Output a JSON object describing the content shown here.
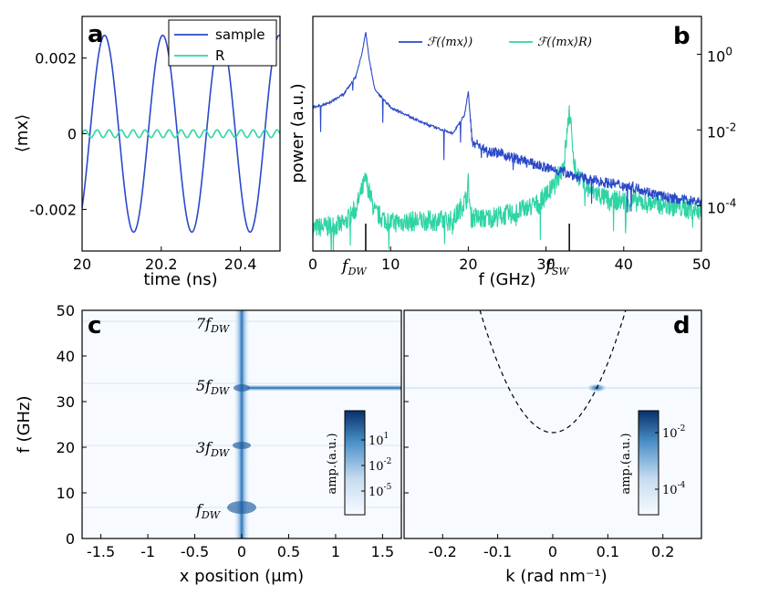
{
  "chart_data": [
    {
      "panel": "a",
      "type": "line",
      "xlabel": "time (ns)",
      "ylabel": "⟨mx⟩",
      "xlim": [
        20,
        20.5
      ],
      "ylim": [
        -0.0031,
        0.0031
      ],
      "xticks": [
        "20",
        "20.2",
        "20.4"
      ],
      "xtick_values": [
        20,
        20.2,
        20.4
      ],
      "yticks": [
        "0.002",
        "0",
        "-0.002"
      ],
      "ytick_values": [
        0.002,
        0,
        -0.002
      ],
      "legend": {
        "placement": "top-right",
        "entries": [
          "sample",
          "R"
        ]
      },
      "series": [
        {
          "name": "sample",
          "color": "#2a49c8",
          "amplitude": 0.0026,
          "frequency_GHz": 6.8,
          "phase": 0.0
        },
        {
          "name": "R",
          "color": "#2fd4a4",
          "amplitude": 0.0001,
          "frequency_GHz": 33,
          "phase": 0.0
        }
      ]
    },
    {
      "panel": "b",
      "type": "line",
      "xlabel": "f (GHz)",
      "ylabel": "power (a.u.)",
      "xlim": [
        0,
        50
      ],
      "yscale": "log",
      "ylim_log10": [
        -5.2,
        1.0
      ],
      "xticks": [
        "0",
        "10",
        "20",
        "30",
        "40",
        "50"
      ],
      "xtick_values": [
        0,
        10,
        20,
        30,
        40,
        50
      ],
      "yticks": [
        "10^0",
        "10^-2",
        "10^-4"
      ],
      "ytick_values_log10": [
        0,
        -2,
        -4
      ],
      "annotations": [
        {
          "label": "f",
          "sub": "DW",
          "x": 6.8
        },
        {
          "label": "f",
          "sub": "SW",
          "x": 33
        }
      ],
      "legend": {
        "placement": "top-center",
        "entries": [
          "ℱ(⟨mx⟩)",
          "ℱ(⟨mx⟩R)"
        ]
      },
      "series": [
        {
          "name": "ℱ(⟨mx⟩)",
          "color": "#2a49c8",
          "x": [
            0,
            2,
            4,
            5.5,
            6.3,
            6.8,
            7.3,
            8,
            10,
            14,
            18,
            19.5,
            20,
            20.5,
            22,
            26,
            30,
            32,
            33,
            34,
            38,
            42,
            44,
            46,
            48,
            50
          ],
          "log10_power": [
            -1.4,
            -1.3,
            -1.05,
            -0.6,
            0.0,
            0.6,
            -0.2,
            -0.95,
            -1.4,
            -1.8,
            -2.1,
            -1.6,
            -1.0,
            -2.3,
            -2.5,
            -2.75,
            -3.0,
            -3.1,
            -3.15,
            -3.25,
            -3.4,
            -3.55,
            -3.7,
            -3.8,
            -3.85,
            -3.9
          ]
        },
        {
          "name": "ℱ(⟨mx⟩R)",
          "color": "#2fd4a4",
          "x": [
            0,
            2,
            4,
            5.5,
            6.8,
            8,
            10,
            14,
            18,
            19.8,
            20,
            20.3,
            22,
            26,
            29,
            31,
            32.3,
            33,
            33.7,
            35,
            38,
            42,
            46,
            50
          ],
          "log10_power": [
            -4.6,
            -4.55,
            -4.5,
            -4.1,
            -3.3,
            -4.2,
            -4.45,
            -4.4,
            -4.4,
            -3.8,
            -3.4,
            -4.3,
            -4.35,
            -4.2,
            -3.95,
            -3.5,
            -2.9,
            -1.5,
            -3.0,
            -3.5,
            -3.85,
            -3.9,
            -4.0,
            -4.15
          ]
        }
      ]
    },
    {
      "panel": "c",
      "type": "heatmap",
      "xlabel": "x position (μm)",
      "ylabel": "f (GHz)",
      "xlim": [
        -1.7,
        1.7
      ],
      "ylim": [
        0,
        50
      ],
      "xticks": [
        "-1.5",
        "-1",
        "-0.5",
        "0",
        "0.5",
        "1",
        "1.5"
      ],
      "xtick_values": [
        -1.5,
        -1,
        -0.5,
        0,
        0.5,
        1,
        1.5
      ],
      "yticks": [
        "0",
        "10",
        "20",
        "30",
        "40",
        "50"
      ],
      "ytick_values": [
        0,
        10,
        20,
        30,
        40,
        50
      ],
      "annotations": [
        {
          "label": "7f",
          "sub": "DW",
          "f": 47.6
        },
        {
          "label": "5f",
          "sub": "DW",
          "f": 34.0
        },
        {
          "label": "3f",
          "sub": "DW",
          "f": 20.4
        },
        {
          "label": "f",
          "sub": "DW",
          "f": 6.8
        }
      ],
      "colorbar": {
        "label": "amp.(a.u.)",
        "ticks": [
          "10^1",
          "10^-2",
          "10^-5"
        ]
      }
    },
    {
      "panel": "d",
      "type": "heatmap",
      "xlabel": "k (rad nm⁻¹)",
      "ylabel": "",
      "xlim": [
        -0.27,
        0.27
      ],
      "ylim": [
        0,
        50
      ],
      "xticks": [
        "-0.2",
        "-0.1",
        "0",
        "0.1",
        "0.2"
      ],
      "xtick_values": [
        -0.2,
        -0.1,
        0,
        0.1,
        0.2
      ],
      "dispersion_curve": {
        "style": "dashed",
        "f0_GHz": 23.2,
        "f_at_k_0.08": 33
      },
      "hotspot": {
        "k": 0.08,
        "f": 33
      },
      "colorbar": {
        "label": "amp.(a.u.)",
        "ticks": [
          "10^-2",
          "10^-4"
        ]
      }
    }
  ],
  "panel_labels": [
    "a",
    "b",
    "c",
    "d"
  ]
}
